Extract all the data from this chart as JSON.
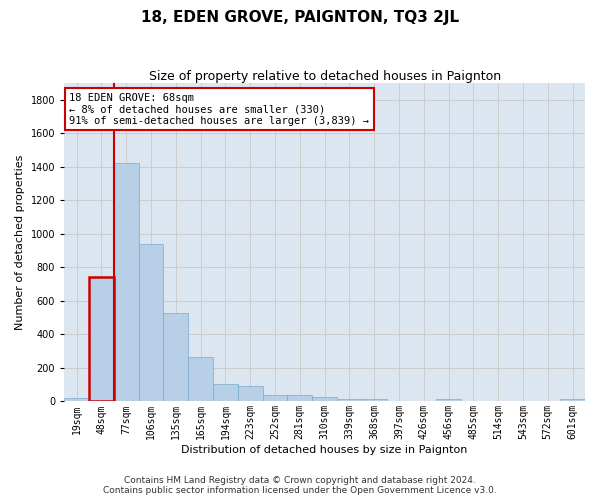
{
  "title": "18, EDEN GROVE, PAIGNTON, TQ3 2JL",
  "subtitle": "Size of property relative to detached houses in Paignton",
  "xlabel": "Distribution of detached houses by size in Paignton",
  "ylabel": "Number of detached properties",
  "categories": [
    "19sqm",
    "48sqm",
    "77sqm",
    "106sqm",
    "135sqm",
    "165sqm",
    "194sqm",
    "223sqm",
    "252sqm",
    "281sqm",
    "310sqm",
    "339sqm",
    "368sqm",
    "397sqm",
    "426sqm",
    "456sqm",
    "485sqm",
    "514sqm",
    "543sqm",
    "572sqm",
    "601sqm"
  ],
  "values": [
    22,
    745,
    1425,
    938,
    530,
    265,
    105,
    93,
    40,
    40,
    27,
    15,
    15,
    0,
    0,
    15,
    0,
    0,
    0,
    0,
    15
  ],
  "bar_color": "#b8cfe8",
  "bar_edge_color": "#7aaad0",
  "annotation_text": "18 EDEN GROVE: 68sqm\n← 8% of detached houses are smaller (330)\n91% of semi-detached houses are larger (3,839) →",
  "annotation_box_color": "#ffffff",
  "annotation_box_edge_color": "#cc0000",
  "grid_color": "#cccccc",
  "background_color": "#dce6f1",
  "ylim": [
    0,
    1900
  ],
  "yticks": [
    0,
    200,
    400,
    600,
    800,
    1000,
    1200,
    1400,
    1600,
    1800
  ],
  "red_line_x": 1.5,
  "footer1": "Contains HM Land Registry data © Crown copyright and database right 2024.",
  "footer2": "Contains public sector information licensed under the Open Government Licence v3.0.",
  "title_fontsize": 11,
  "subtitle_fontsize": 9,
  "axis_label_fontsize": 8,
  "tick_fontsize": 7,
  "footer_fontsize": 6.5,
  "annotation_fontsize": 7.5
}
